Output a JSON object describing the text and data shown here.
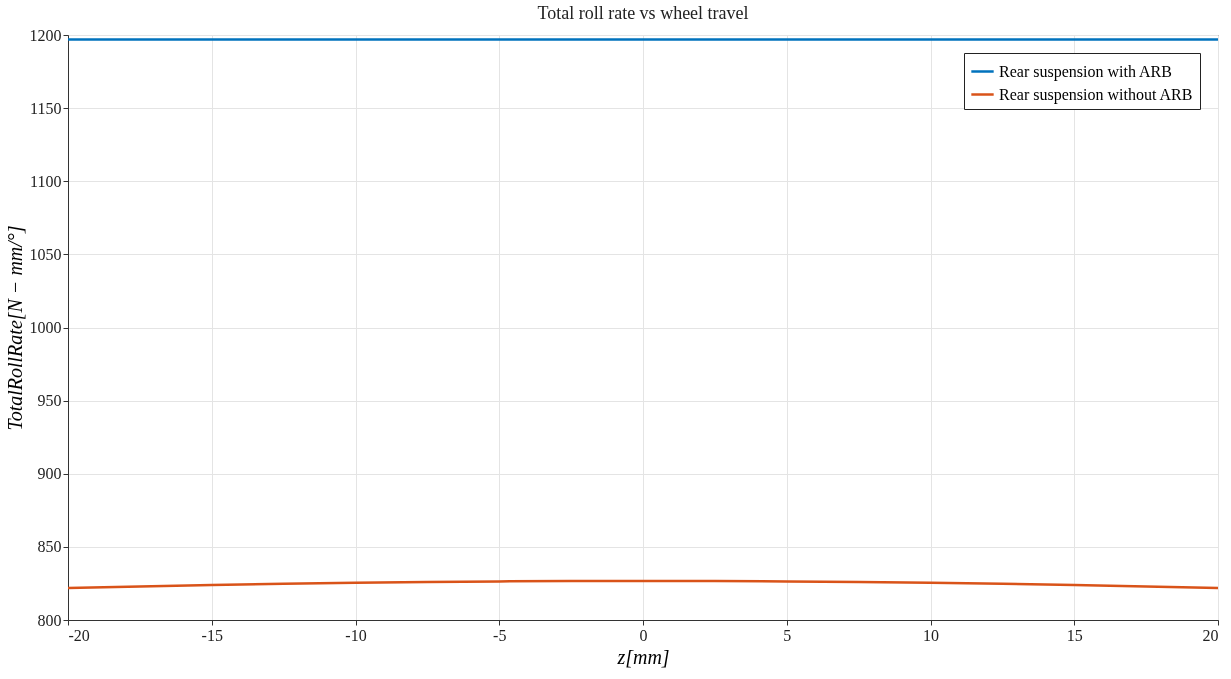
{
  "chart_data": {
    "type": "line",
    "title": "Total roll rate vs wheel travel",
    "xlabel": "z[mm]",
    "ylabel": "TotalRollRate[N − mm/°]",
    "x": [
      -20,
      -17.5,
      -15,
      -12.5,
      -10,
      -7.5,
      -5,
      -2.5,
      0,
      2.5,
      5,
      7.5,
      10,
      12.5,
      15,
      17.5,
      20
    ],
    "series": [
      {
        "name": "Rear suspension with ARB",
        "color": "#0072bd",
        "values": [
          1197,
          1197,
          1197,
          1197,
          1197,
          1197,
          1197,
          1197,
          1197,
          1197,
          1197,
          1197,
          1197,
          1197,
          1197,
          1197,
          1197
        ]
      },
      {
        "name": "Rear suspension without ARB",
        "color": "#d95319",
        "values": [
          821.8,
          822.9,
          824.0,
          824.8,
          825.5,
          826.0,
          826.4,
          826.6,
          826.7,
          826.6,
          826.4,
          826.0,
          825.5,
          824.8,
          824.0,
          822.9,
          821.8
        ]
      }
    ],
    "xlim": [
      -20,
      20
    ],
    "xticks": [
      -20,
      -15,
      -10,
      -5,
      0,
      5,
      10,
      15,
      20
    ],
    "ylim": [
      800,
      1200
    ],
    "yticks": [
      800,
      850,
      900,
      950,
      1000,
      1050,
      1100,
      1150,
      1200
    ],
    "grid": true,
    "legend": "top right",
    "marker": "none",
    "line_style": "solid"
  }
}
